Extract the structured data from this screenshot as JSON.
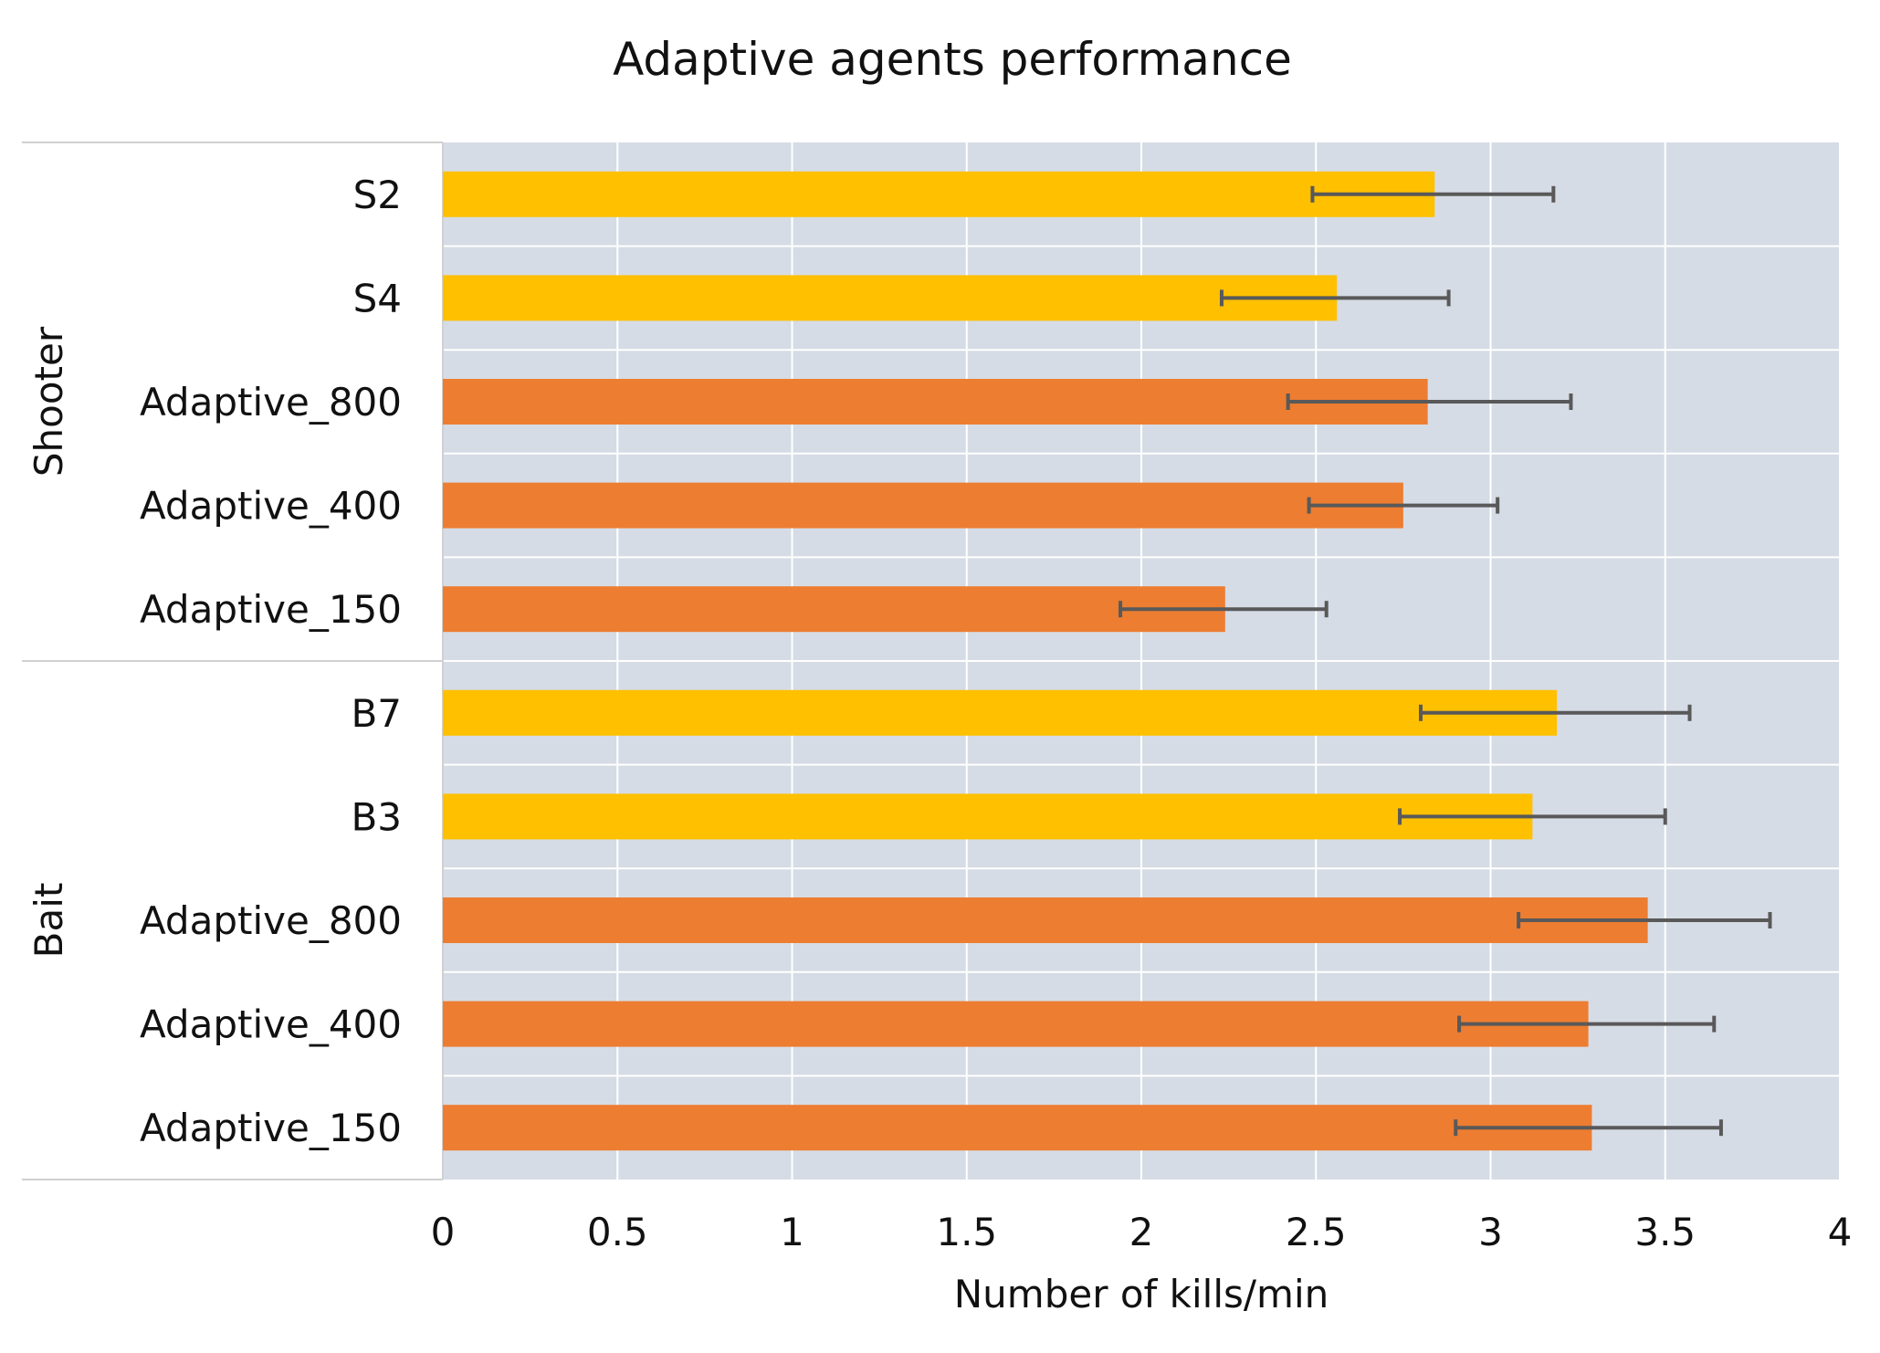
{
  "chart_data": {
    "type": "bar",
    "orientation": "horizontal",
    "title": "Adaptive agents performance",
    "xlabel": "Number of kills/min",
    "ylabel": "",
    "xlim": [
      0,
      4
    ],
    "xticks": [
      {
        "value": 0,
        "label": "0"
      },
      {
        "value": 0.5,
        "label": "0.5"
      },
      {
        "value": 1,
        "label": "1"
      },
      {
        "value": 1.5,
        "label": "1.5"
      },
      {
        "value": 2,
        "label": "2"
      },
      {
        "value": 2.5,
        "label": "2.5"
      },
      {
        "value": 3,
        "label": "3"
      },
      {
        "value": 3.5,
        "label": "3.5"
      },
      {
        "value": 4,
        "label": "4"
      }
    ],
    "grid": true,
    "groups": [
      {
        "name": "Shooter",
        "bars": [
          {
            "label": "S2",
            "value": 2.84,
            "err_low": 2.49,
            "err_high": 3.18,
            "color": "#ffc000"
          },
          {
            "label": "S4",
            "value": 2.56,
            "err_low": 2.23,
            "err_high": 2.88,
            "color": "#ffc000"
          },
          {
            "label": "Adaptive_800",
            "value": 2.82,
            "err_low": 2.42,
            "err_high": 3.23,
            "color": "#ed7d31"
          },
          {
            "label": "Adaptive_400",
            "value": 2.75,
            "err_low": 2.48,
            "err_high": 3.02,
            "color": "#ed7d31"
          },
          {
            "label": "Adaptive_150",
            "value": 2.24,
            "err_low": 1.94,
            "err_high": 2.53,
            "color": "#ed7d31"
          }
        ]
      },
      {
        "name": "Bait",
        "bars": [
          {
            "label": "B7",
            "value": 3.19,
            "err_low": 2.8,
            "err_high": 3.57,
            "color": "#ffc000"
          },
          {
            "label": "B3",
            "value": 3.12,
            "err_low": 2.74,
            "err_high": 3.5,
            "color": "#ffc000"
          },
          {
            "label": "Adaptive_800",
            "value": 3.45,
            "err_low": 3.08,
            "err_high": 3.8,
            "color": "#ed7d31"
          },
          {
            "label": "Adaptive_400",
            "value": 3.28,
            "err_low": 2.91,
            "err_high": 3.64,
            "color": "#ed7d31"
          },
          {
            "label": "Adaptive_150",
            "value": 3.29,
            "err_low": 2.9,
            "err_high": 3.66,
            "color": "#ed7d31"
          }
        ]
      }
    ],
    "colors": {
      "baseline_bar": "#ffc000",
      "adaptive_bar": "#ed7d31",
      "plot_background": "#d6dce5",
      "gridline": "#ffffff",
      "error_bar": "#595959"
    }
  }
}
